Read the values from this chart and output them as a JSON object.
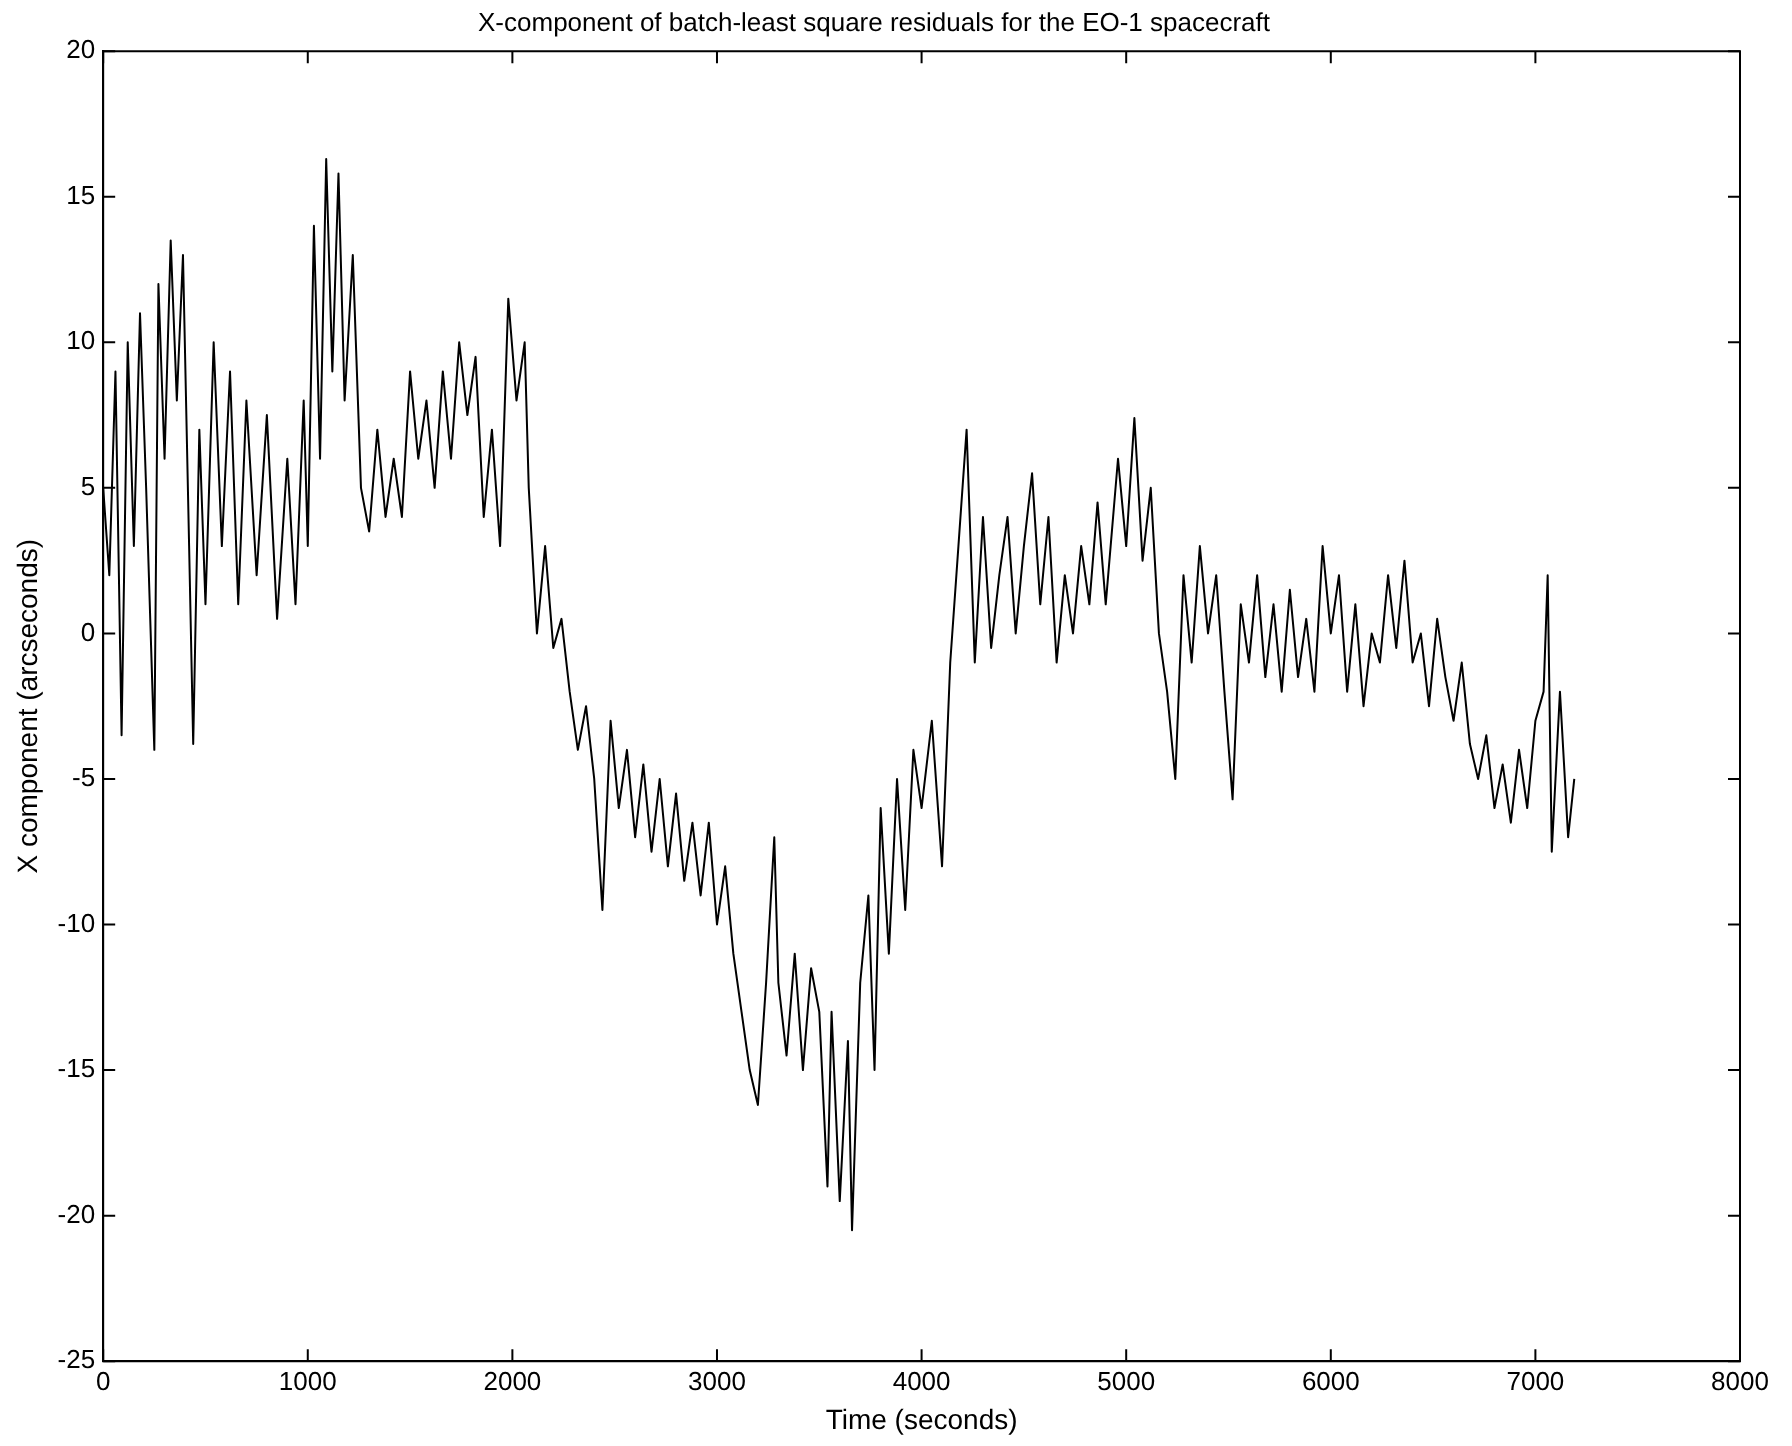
{
  "chart_data": {
    "type": "line",
    "title": "X-component of batch-least square residuals for the EO-1 spacecraft",
    "xlabel": "Time (seconds)",
    "ylabel": "X component (arcseconds)",
    "xlim": [
      0,
      8000
    ],
    "xticks": [
      0,
      1000,
      2000,
      3000,
      4000,
      5000,
      6000,
      7000,
      8000
    ],
    "ylim": [
      -25,
      20
    ],
    "yticks": [
      -25,
      -20,
      -15,
      -10,
      -5,
      0,
      5,
      10,
      15,
      20
    ],
    "grid": false,
    "legend": false,
    "marker": "none",
    "line_style": "solid",
    "x": [
      0,
      30,
      60,
      90,
      120,
      150,
      180,
      210,
      250,
      270,
      300,
      330,
      360,
      390,
      420,
      440,
      470,
      500,
      540,
      580,
      620,
      660,
      700,
      750,
      800,
      850,
      900,
      940,
      980,
      1000,
      1030,
      1060,
      1090,
      1120,
      1150,
      1180,
      1220,
      1260,
      1300,
      1340,
      1380,
      1420,
      1460,
      1500,
      1540,
      1580,
      1620,
      1660,
      1700,
      1740,
      1780,
      1820,
      1860,
      1900,
      1940,
      1980,
      2020,
      2060,
      2080,
      2120,
      2160,
      2200,
      2240,
      2280,
      2320,
      2360,
      2400,
      2440,
      2480,
      2520,
      2560,
      2600,
      2640,
      2680,
      2720,
      2760,
      2800,
      2840,
      2880,
      2920,
      2960,
      3000,
      3040,
      3080,
      3120,
      3160,
      3200,
      3240,
      3280,
      3300,
      3340,
      3380,
      3420,
      3460,
      3500,
      3540,
      3560,
      3600,
      3640,
      3660,
      3700,
      3740,
      3770,
      3800,
      3840,
      3880,
      3920,
      3960,
      4000,
      4050,
      4100,
      4140,
      4180,
      4220,
      4260,
      4300,
      4340,
      4380,
      4420,
      4460,
      4500,
      4540,
      4580,
      4620,
      4660,
      4700,
      4740,
      4780,
      4820,
      4860,
      4900,
      4960,
      5000,
      5040,
      5080,
      5120,
      5160,
      5200,
      5240,
      5280,
      5320,
      5360,
      5400,
      5440,
      5480,
      5520,
      5560,
      5600,
      5640,
      5680,
      5720,
      5760,
      5800,
      5840,
      5880,
      5920,
      5960,
      6000,
      6040,
      6080,
      6120,
      6160,
      6200,
      6240,
      6280,
      6320,
      6360,
      6400,
      6440,
      6480,
      6520,
      6560,
      6600,
      6640,
      6680,
      6720,
      6760,
      6800,
      6840,
      6880,
      6920,
      6960,
      7000,
      7040,
      7060,
      7080,
      7120,
      7160,
      7190
    ],
    "series": [
      {
        "color": "#000000",
        "values": [
          5,
          2,
          9,
          -3.5,
          10,
          3,
          11,
          5,
          -4,
          12,
          6,
          13.5,
          8,
          13,
          3,
          -3.8,
          7,
          1,
          10,
          3,
          9,
          1,
          8,
          2,
          7.5,
          0.5,
          6,
          1,
          8,
          3,
          14,
          6,
          16.3,
          9,
          15.8,
          8,
          13,
          5,
          3.5,
          7,
          4,
          6,
          4,
          9,
          6,
          8,
          5,
          9,
          6,
          10,
          7.5,
          9.5,
          4,
          7,
          3,
          11.5,
          8,
          10,
          5,
          0,
          3,
          -0.5,
          0.5,
          -2,
          -4,
          -2.5,
          -5,
          -9.5,
          -3,
          -6,
          -4,
          -7,
          -4.5,
          -7.5,
          -5,
          -8,
          -5.5,
          -8.5,
          -6.5,
          -9,
          -6.5,
          -10,
          -8,
          -11,
          -13,
          -15,
          -16.2,
          -12,
          -7,
          -12,
          -14.5,
          -11,
          -15,
          -11.5,
          -13,
          -19,
          -13,
          -19.5,
          -14,
          -20.5,
          -12,
          -9,
          -15,
          -6,
          -11,
          -5,
          -9.5,
          -4,
          -6,
          -3,
          -8,
          -1,
          3,
          7,
          -1,
          4,
          -0.5,
          2,
          4,
          0,
          3,
          5.5,
          1,
          4,
          -1,
          2,
          0,
          3,
          1,
          4.5,
          1,
          6,
          3,
          7.4,
          2.5,
          5,
          0,
          -2,
          -5,
          2,
          -1,
          3,
          0,
          2,
          -2,
          -5.7,
          1,
          -1,
          2,
          -1.5,
          1,
          -2,
          1.5,
          -1.5,
          0.5,
          -2,
          3,
          0,
          2,
          -2,
          1,
          -2.5,
          0,
          -1,
          2,
          -0.5,
          2.5,
          -1,
          0,
          -2.5,
          0.5,
          -1.5,
          -3,
          -1,
          -3.8,
          -5,
          -3.5,
          -6,
          -4.5,
          -6.5,
          -4,
          -6,
          -3,
          -2,
          2,
          -7.5,
          -2,
          -7,
          -5
        ]
      }
    ]
  }
}
